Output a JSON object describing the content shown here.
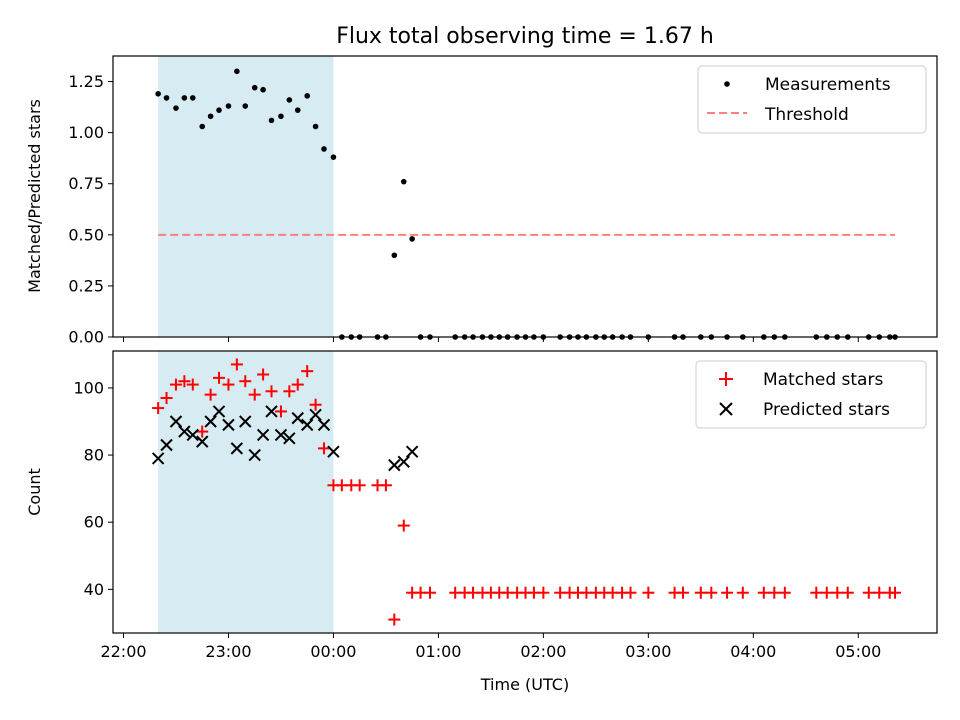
{
  "figure": {
    "title": "Flux total observing time = 1.67 h",
    "xlabel": "Time (UTC)",
    "x_ticks": [
      {
        "t": -2,
        "label": "22:00"
      },
      {
        "t": -1,
        "label": "23:00"
      },
      {
        "t": 0,
        "label": "00:00"
      },
      {
        "t": 1,
        "label": "01:00"
      },
      {
        "t": 2,
        "label": "02:00"
      },
      {
        "t": 3,
        "label": "03:00"
      },
      {
        "t": 4,
        "label": "04:00"
      },
      {
        "t": 5,
        "label": "05:00"
      }
    ]
  },
  "colors": {
    "shade": "#add8e6",
    "measurements": "#000000",
    "threshold": "#ff7f7f",
    "matched": "#ff0000",
    "predicted": "#000000"
  },
  "chart_data": [
    {
      "type": "scatter",
      "title": "Flux total observing time = 1.67 h",
      "xlabel": "",
      "ylabel": "Matched/Predicted stars",
      "xlim": [
        -2.1,
        5.75
      ],
      "ylim": [
        0,
        1.375
      ],
      "y_ticks": [
        "0.00",
        "0.25",
        "0.50",
        "0.75",
        "1.00",
        "1.25"
      ],
      "shaded_interval": [
        -1.67,
        0.0
      ],
      "threshold": {
        "y": 0.5,
        "x_range": [
          -1.67,
          5.35
        ]
      },
      "legend": {
        "position": "top-right",
        "entries": [
          "Measurements",
          "Threshold"
        ]
      },
      "series": [
        {
          "name": "Measurements",
          "x": [
            -1.67,
            -1.59,
            -1.5,
            -1.42,
            -1.34,
            -1.25,
            -1.17,
            -1.09,
            -1.0,
            -0.92,
            -0.84,
            -0.75,
            -0.67,
            -0.59,
            -0.5,
            -0.42,
            -0.34,
            -0.25,
            -0.17,
            -0.09,
            0.0,
            0.08,
            0.17,
            0.25,
            0.42,
            0.5,
            0.58,
            0.67,
            0.75,
            0.83,
            0.92,
            1.16,
            1.25,
            1.33,
            1.42,
            1.5,
            1.58,
            1.66,
            1.75,
            1.83,
            1.91,
            2.0,
            2.16,
            2.25,
            2.33,
            2.41,
            2.5,
            2.58,
            2.66,
            2.75,
            2.83,
            3.0,
            3.25,
            3.33,
            3.5,
            3.6,
            3.75,
            3.9,
            4.1,
            4.2,
            4.3,
            4.6,
            4.7,
            4.8,
            4.9,
            5.1,
            5.2,
            5.3,
            5.35
          ],
          "y": [
            1.19,
            1.17,
            1.12,
            1.17,
            1.17,
            1.03,
            1.08,
            1.11,
            1.13,
            1.3,
            1.13,
            1.22,
            1.21,
            1.06,
            1.08,
            1.16,
            1.11,
            1.18,
            1.03,
            0.92,
            0.88,
            0,
            0,
            0,
            0,
            0,
            0.4,
            0.76,
            0.48,
            0,
            0,
            0,
            0,
            0,
            0,
            0,
            0,
            0,
            0,
            0,
            0,
            0,
            0,
            0,
            0,
            0,
            0,
            0,
            0,
            0,
            0,
            0,
            0,
            0,
            0,
            0,
            0,
            0,
            0,
            0,
            0,
            0,
            0,
            0,
            0,
            0,
            0,
            0,
            0
          ]
        }
      ]
    },
    {
      "type": "scatter",
      "xlabel": "Time (UTC)",
      "ylabel": "Count",
      "xlim": [
        -2.1,
        5.75
      ],
      "ylim": [
        27,
        111
      ],
      "y_ticks": [
        "40",
        "60",
        "80",
        "100"
      ],
      "shaded_interval": [
        -1.67,
        0.0
      ],
      "legend": {
        "position": "top-right",
        "entries": [
          "Matched stars",
          "Predicted stars"
        ]
      },
      "series": [
        {
          "name": "Matched stars",
          "marker": "plus",
          "x": [
            -1.67,
            -1.59,
            -1.5,
            -1.42,
            -1.34,
            -1.25,
            -1.17,
            -1.09,
            -1.0,
            -0.92,
            -0.84,
            -0.75,
            -0.67,
            -0.59,
            -0.5,
            -0.42,
            -0.34,
            -0.25,
            -0.17,
            -0.09,
            0.0,
            0.08,
            0.17,
            0.25,
            0.42,
            0.5,
            0.58,
            0.67,
            0.75,
            0.83,
            0.92,
            1.16,
            1.25,
            1.33,
            1.42,
            1.5,
            1.58,
            1.66,
            1.75,
            1.83,
            1.91,
            2.0,
            2.16,
            2.25,
            2.33,
            2.41,
            2.5,
            2.58,
            2.66,
            2.75,
            2.83,
            3.0,
            3.25,
            3.33,
            3.5,
            3.6,
            3.75,
            3.9,
            4.1,
            4.2,
            4.3,
            4.6,
            4.7,
            4.8,
            4.9,
            5.1,
            5.2,
            5.3,
            5.35
          ],
          "y": [
            94,
            97,
            101,
            102,
            101,
            87,
            98,
            103,
            101,
            107,
            102,
            98,
            104,
            99,
            93,
            99,
            101,
            105,
            95,
            82,
            71,
            71,
            71,
            71,
            71,
            71,
            31,
            59,
            39,
            39,
            39,
            39,
            39,
            39,
            39,
            39,
            39,
            39,
            39,
            39,
            39,
            39,
            39,
            39,
            39,
            39,
            39,
            39,
            39,
            39,
            39,
            39,
            39,
            39,
            39,
            39,
            39,
            39,
            39,
            39,
            39,
            39,
            39,
            39,
            39,
            39,
            39,
            39,
            39
          ]
        },
        {
          "name": "Predicted stars",
          "marker": "x",
          "x": [
            -1.67,
            -1.59,
            -1.5,
            -1.42,
            -1.34,
            -1.25,
            -1.17,
            -1.09,
            -1.0,
            -0.92,
            -0.84,
            -0.75,
            -0.67,
            -0.59,
            -0.5,
            -0.42,
            -0.34,
            -0.25,
            -0.17,
            -0.09,
            0.0,
            0.58,
            0.67,
            0.75
          ],
          "y": [
            79,
            83,
            90,
            87,
            86,
            84,
            90,
            93,
            89,
            82,
            90,
            80,
            86,
            93,
            86,
            85,
            91,
            89,
            92,
            89,
            81,
            77,
            78,
            81
          ]
        }
      ]
    }
  ]
}
